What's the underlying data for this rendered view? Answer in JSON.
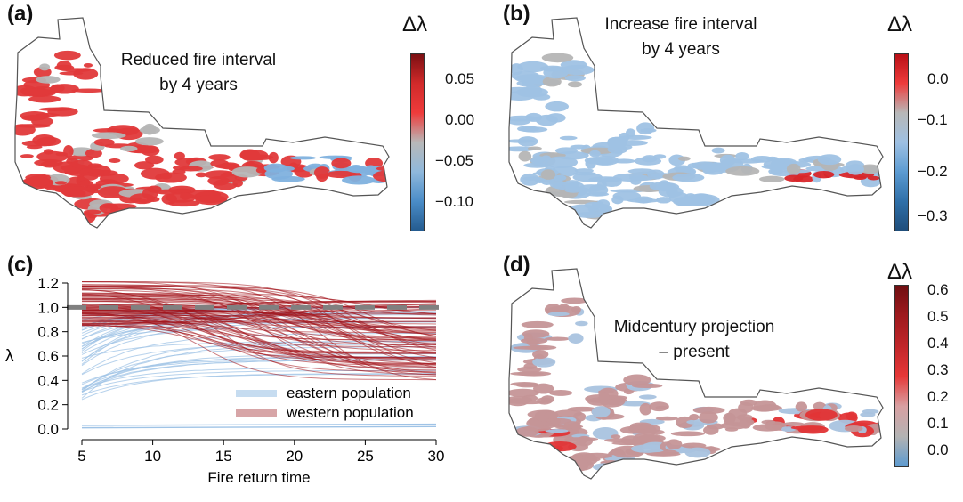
{
  "panels": {
    "a": {
      "letter": "(a)",
      "title_line1": "Reduced fire interval",
      "title_line2": "by 4 years",
      "colorbar": {
        "symbol": "Δλ",
        "ticks": [
          "0.05",
          "0.00",
          "−0.05",
          "−0.10"
        ],
        "colors": [
          "#7a0f12",
          "#d12a2a",
          "#ee3b3b",
          "#b8b8b8",
          "#8fb8dc",
          "#4a8cc7",
          "#245b8f"
        ]
      },
      "map_colors": {
        "main": "#e0393a",
        "secondary": "#b5b5b5",
        "accent": "#7fb1de"
      }
    },
    "b": {
      "letter": "(b)",
      "title_line1": "Increase fire interval",
      "title_line2": "by 4 years",
      "colorbar": {
        "symbol": "Δλ",
        "ticks": [
          "0.0",
          "−0.1",
          "−0.2",
          "−0.3"
        ],
        "colors": [
          "#b80f16",
          "#ee3b3b",
          "#b8b8b8",
          "#9ec0e2",
          "#5c9bd2",
          "#2f6fa8",
          "#1f4d7a"
        ]
      },
      "map_colors": {
        "main": "#9fc2e4",
        "secondary": "#b5b5b5",
        "accent": "#d8262a"
      }
    },
    "c": {
      "letter": "(c)",
      "legend": [
        {
          "label": "eastern population",
          "color": "#c6dcf0"
        },
        {
          "label": "western population",
          "color": "#d7a5a7"
        }
      ]
    },
    "d": {
      "letter": "(d)",
      "title_line1": "Midcentury projection",
      "title_line2": "– present",
      "colorbar": {
        "symbol": "Δλ",
        "ticks": [
          "0.6",
          "0.5",
          "0.4",
          "0.3",
          "0.2",
          "0.1",
          "0.0"
        ],
        "colors": [
          "#6f0f12",
          "#9e1a1e",
          "#c0262a",
          "#e63838",
          "#d8a0a2",
          "#b3b3b3",
          "#5b9ad0"
        ]
      },
      "map_colors": {
        "main": "#c59597",
        "secondary": "#a9c3df",
        "accent": "#e13436"
      }
    }
  },
  "chart_data": {
    "type": "line",
    "xlabel": "Fire return time",
    "ylabel": "λ",
    "xlim": [
      5,
      30
    ],
    "ylim": [
      0.0,
      1.2
    ],
    "xticks": [
      5,
      10,
      15,
      20,
      25,
      30
    ],
    "yticks": [
      0.0,
      0.2,
      0.4,
      0.6,
      0.8,
      1.0,
      1.2
    ],
    "reference_line": {
      "y": 1.0,
      "style": "dashed",
      "color": "#808080"
    },
    "series": [
      {
        "name": "eastern population",
        "color": "#9fc3e6",
        "shape": "saturating",
        "start_lambda_range": [
          0.24,
          0.95
        ],
        "end_lambda_range": [
          0.52,
          1.0
        ],
        "extra_flat_lines": [
          0.01,
          0.03
        ]
      },
      {
        "name": "western population",
        "color": "#a3121a",
        "shape": "declining",
        "start_lambda_range": [
          0.72,
          1.22
        ],
        "end_lambda_range": [
          0.38,
          1.06
        ]
      }
    ]
  }
}
